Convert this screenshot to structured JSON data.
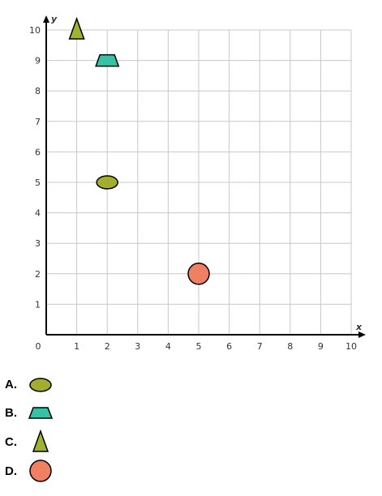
{
  "chart_data": {
    "type": "scatter",
    "xlabel": "x",
    "ylabel": "y",
    "xlim": [
      0,
      10
    ],
    "ylim": [
      0,
      10
    ],
    "grid": true,
    "x_ticks": [
      0,
      1,
      2,
      3,
      4,
      5,
      6,
      7,
      8,
      9,
      10
    ],
    "y_ticks": [
      1,
      2,
      3,
      4,
      5,
      6,
      7,
      8,
      9,
      10
    ],
    "points": [
      {
        "shape": "oval",
        "x": 2,
        "y": 5,
        "color": "#a3ad2f"
      },
      {
        "shape": "trapezoid",
        "x": 2,
        "y": 9,
        "color": "#36c3a5"
      },
      {
        "shape": "triangle",
        "x": 1,
        "y": 10,
        "color": "#9fb232"
      },
      {
        "shape": "circle",
        "x": 5,
        "y": 2,
        "color": "#ef8062"
      }
    ]
  },
  "options": [
    {
      "letter": "A.",
      "shape": "oval",
      "color": "#a3ad2f"
    },
    {
      "letter": "B.",
      "shape": "trapezoid",
      "color": "#36c3a5"
    },
    {
      "letter": "C.",
      "shape": "triangle",
      "color": "#9fb232"
    },
    {
      "letter": "D.",
      "shape": "circle",
      "color": "#ef8062"
    }
  ]
}
